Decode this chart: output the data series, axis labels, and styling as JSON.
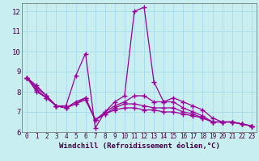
{
  "xlabel": "Windchill (Refroidissement éolien,°C)",
  "background_color": "#c8eef0",
  "grid_color": "#aaddee",
  "line_color": "#990099",
  "xlim": [
    -0.5,
    23.5
  ],
  "ylim": [
    6.0,
    12.4
  ],
  "yticks": [
    6,
    7,
    8,
    9,
    10,
    11,
    12
  ],
  "xticks": [
    0,
    1,
    2,
    3,
    4,
    5,
    6,
    7,
    8,
    9,
    10,
    11,
    12,
    13,
    14,
    15,
    16,
    17,
    18,
    19,
    20,
    21,
    22,
    23
  ],
  "series": [
    [
      8.7,
      8.3,
      7.8,
      7.3,
      7.3,
      8.8,
      9.9,
      6.2,
      7.0,
      7.5,
      7.8,
      12.0,
      12.2,
      8.5,
      7.5,
      7.7,
      7.5,
      7.3,
      7.1,
      6.7,
      6.5,
      6.5,
      6.4,
      6.3
    ],
    [
      8.7,
      8.2,
      7.8,
      7.3,
      7.2,
      7.5,
      7.7,
      6.6,
      7.0,
      7.3,
      7.5,
      7.8,
      7.8,
      7.5,
      7.5,
      7.5,
      7.2,
      7.0,
      6.8,
      6.5,
      6.5,
      6.5,
      6.4,
      6.3
    ],
    [
      8.7,
      8.1,
      7.7,
      7.3,
      7.2,
      7.4,
      7.7,
      6.6,
      6.9,
      7.2,
      7.4,
      7.4,
      7.3,
      7.2,
      7.2,
      7.2,
      7.0,
      6.9,
      6.7,
      6.5,
      6.5,
      6.5,
      6.4,
      6.3
    ],
    [
      8.7,
      8.0,
      7.7,
      7.3,
      7.2,
      7.4,
      7.6,
      6.6,
      6.9,
      7.1,
      7.2,
      7.2,
      7.1,
      7.1,
      7.0,
      7.0,
      6.9,
      6.8,
      6.7,
      6.5,
      6.5,
      6.5,
      6.4,
      6.3
    ]
  ]
}
